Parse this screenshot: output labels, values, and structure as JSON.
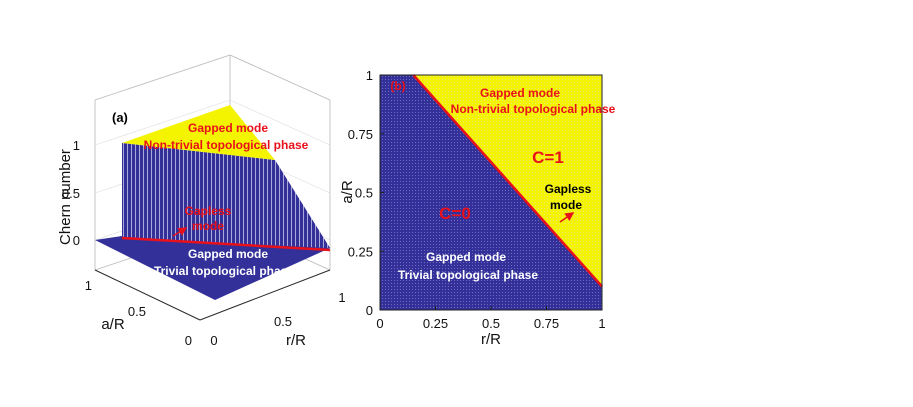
{
  "colors": {
    "trivial_phase": "#33309a",
    "nontrivial_phase": "#f4f400",
    "boundary": "#e8101a",
    "annotation_red": "#e8101a",
    "annotation_white": "#ffffff",
    "annotation_black": "#000000"
  },
  "chart_data": [
    {
      "type": "surface3d",
      "panel_label": "(a)",
      "zlabel": "Chern number",
      "xlabel": "r/R",
      "ylabel": "a/R",
      "xlim": [
        0,
        1
      ],
      "ylim": [
        0,
        1
      ],
      "zlim": [
        0,
        1
      ],
      "x_ticks": [
        "0",
        "0.5",
        "1"
      ],
      "y_ticks": [
        "0",
        "0.5",
        "1"
      ],
      "z_ticks": [
        "0",
        "0.5",
        "1"
      ],
      "phases": [
        {
          "chern": 1,
          "condition": "a/R + r/R > 1",
          "color": "#f4f400"
        },
        {
          "chern": 0,
          "condition": "a/R + r/R < 1",
          "color": "#33309a"
        }
      ],
      "boundary": {
        "x": [
          0,
          1
        ],
        "y": [
          1,
          0
        ]
      },
      "annotations": {
        "gapped_top_1": "Gapped mode",
        "gapped_top_2": "Non-trivial topological phase",
        "gapless_1": "Gapless",
        "gapless_2": "mode",
        "gapped_bottom_1": "Gapped mode",
        "gapped_bottom_2": "Trivial topological phase"
      }
    },
    {
      "type": "heatmap",
      "panel_label": "(b)",
      "xlabel": "r/R",
      "ylabel": "a/R",
      "xlim": [
        0,
        1
      ],
      "ylim": [
        0,
        1
      ],
      "x_ticks": [
        "0",
        "0.25",
        "0.5",
        "0.75",
        "1"
      ],
      "y_ticks": [
        "0",
        "0.25",
        "0.5",
        "0.75",
        "1"
      ],
      "boundary": {
        "x": [
          0.15,
          1
        ],
        "y": [
          1,
          0.1
        ]
      },
      "regions": [
        {
          "label": "C=0",
          "color": "#33309a"
        },
        {
          "label": "C=1",
          "color": "#f4f400"
        }
      ],
      "annotations": {
        "gapped_top_1": "Gapped mode",
        "gapped_top_2": "Non-trivial topological phase",
        "c1": "C=1",
        "c0": "C=0",
        "gapless_1": "Gapless",
        "gapless_2": "mode",
        "gapped_bottom_1": "Gapped mode",
        "gapped_bottom_2": "Trivial topological phase"
      }
    }
  ]
}
